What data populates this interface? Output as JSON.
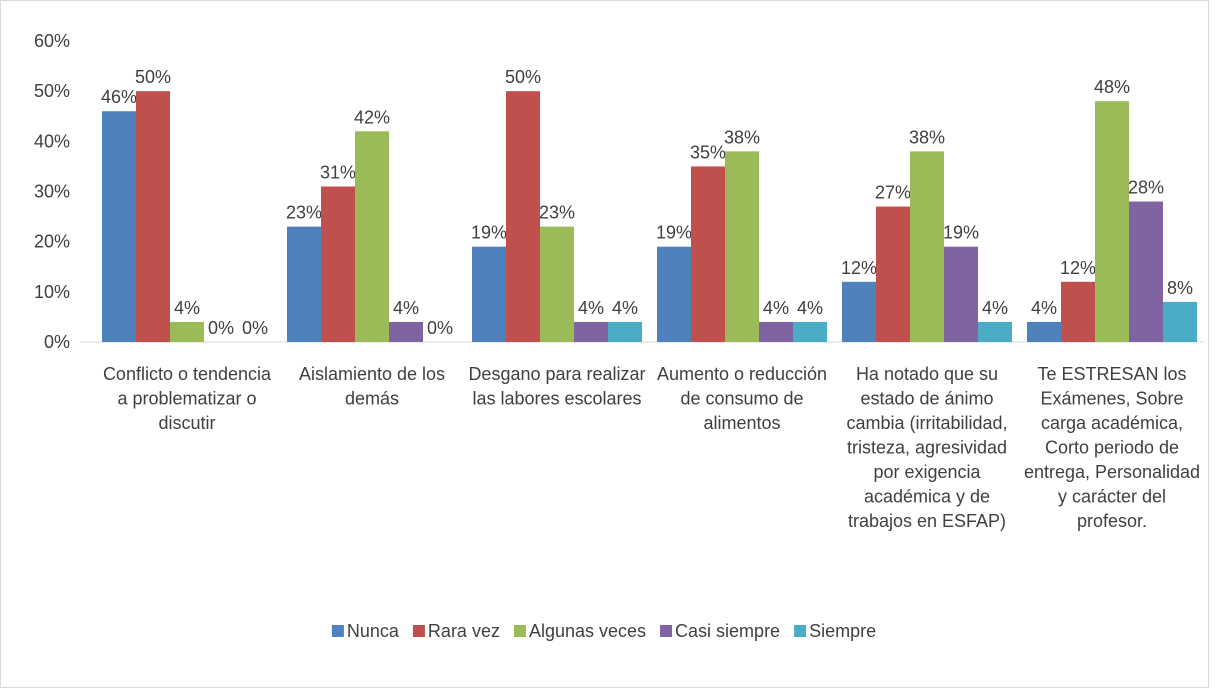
{
  "chart_data": {
    "type": "bar",
    "categories": [
      "Conflicto o tendencia a problematizar o discutir",
      "Aislamiento de los demás",
      "Desgano para realizar las labores escolares",
      "Aumento o reducción de consumo de alimentos",
      "Ha notado que su estado de ánimo cambia (irritabilidad, tristeza, agresividad por exigencia académica y de trabajos en ESFAP)",
      "Te ESTRESAN los Exámenes, Sobre carga académica, Corto periodo de entrega, Personalidad y carácter del profesor."
    ],
    "series": [
      {
        "name": "Nunca",
        "color": "#4f81bd",
        "values": [
          46,
          23,
          19,
          19,
          12,
          4
        ],
        "value_labels": [
          "46%",
          "23%",
          "19%",
          "19%",
          "12%",
          "4%"
        ]
      },
      {
        "name": "Rara vez",
        "color": "#c0504d",
        "values": [
          50,
          31,
          50,
          35,
          27,
          12
        ],
        "value_labels": [
          "50%",
          "31%",
          "50%",
          "35%",
          "27%",
          "12%"
        ]
      },
      {
        "name": "Algunas veces",
        "color": "#9bbb59",
        "values": [
          4,
          42,
          23,
          38,
          38,
          48
        ],
        "value_labels": [
          "4%",
          "42%",
          "23%",
          "38%",
          "38%",
          "48%"
        ]
      },
      {
        "name": "Casi siempre",
        "color": "#8064a2",
        "values": [
          0,
          4,
          4,
          4,
          19,
          28
        ],
        "value_labels": [
          "0%",
          "4%",
          "4%",
          "4%",
          "19%",
          "28%"
        ]
      },
      {
        "name": "Siempre",
        "color": "#4bacc6",
        "values": [
          0,
          0,
          4,
          4,
          4,
          8
        ],
        "value_labels": [
          "0%",
          "0%",
          "4%",
          "4%",
          "4%",
          "8%"
        ]
      }
    ],
    "ylim": [
      0,
      60
    ],
    "yticks": [
      {
        "value": 0,
        "label": "0%"
      },
      {
        "value": 10,
        "label": "10%"
      },
      {
        "value": 20,
        "label": "20%"
      },
      {
        "value": 30,
        "label": "30%"
      },
      {
        "value": 40,
        "label": "40%"
      },
      {
        "value": 50,
        "label": "50%"
      },
      {
        "value": 60,
        "label": "60%"
      }
    ],
    "grid": false,
    "legend": "bottom"
  }
}
